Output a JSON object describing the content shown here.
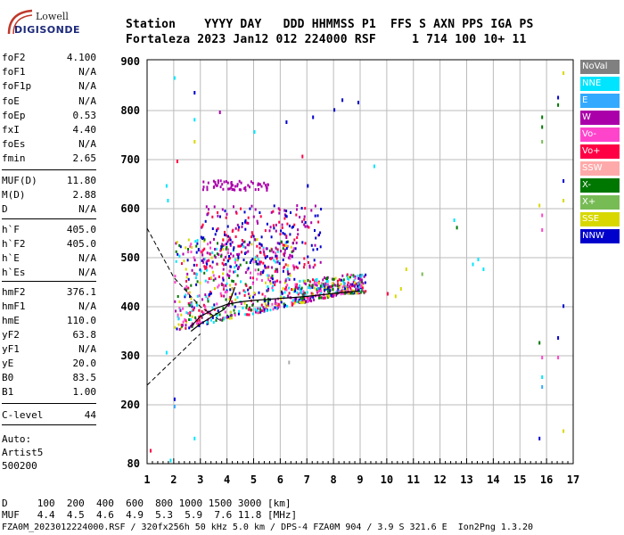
{
  "logo": {
    "line1": "Lowell",
    "line2": "DIGISONDE"
  },
  "header": {
    "row1": "Station    YYYY DAY   DDD HHMMSS P1  FFS S AXN PPS IGA PS",
    "row2": "Fortaleza 2023 Jan12 012 224000 RSF     1 714 100 10+ 11"
  },
  "params": [
    {
      "name": "foF2",
      "value": "4.100"
    },
    {
      "name": "foF1",
      "value": "N/A"
    },
    {
      "name": "foF1p",
      "value": "N/A"
    },
    {
      "name": "foE",
      "value": "N/A"
    },
    {
      "name": "foEp",
      "value": "0.53"
    },
    {
      "name": "fxI",
      "value": "4.40"
    },
    {
      "name": "foEs",
      "value": "N/A"
    },
    {
      "name": "fmin",
      "value": "2.65"
    },
    {
      "name": "MUF(D)",
      "value": "11.80"
    },
    {
      "name": "M(D)",
      "value": "2.88"
    },
    {
      "name": "D",
      "value": "N/A"
    },
    {
      "name": "h`F",
      "value": "405.0"
    },
    {
      "name": "h`F2",
      "value": "405.0"
    },
    {
      "name": "h`E",
      "value": "N/A"
    },
    {
      "name": "h`Es",
      "value": "N/A"
    },
    {
      "name": "hmF2",
      "value": "376.1"
    },
    {
      "name": "hmF1",
      "value": "N/A"
    },
    {
      "name": "hmE",
      "value": "110.0"
    },
    {
      "name": "yF2",
      "value": "63.8"
    },
    {
      "name": "yF1",
      "value": "N/A"
    },
    {
      "name": "yE",
      "value": "20.0"
    },
    {
      "name": "B0",
      "value": "83.5"
    },
    {
      "name": "B1",
      "value": "1.00"
    },
    {
      "name": "C-level",
      "value": "44"
    }
  ],
  "auto": {
    "line1": "Auto:",
    "line2": "Artist5",
    "line3": "500200"
  },
  "legend": [
    {
      "label": "NoVal",
      "color": "#808080"
    },
    {
      "label": "NNE",
      "color": "#00e5ff"
    },
    {
      "label": "E",
      "color": "#33aaff"
    },
    {
      "label": "W",
      "color": "#aa00aa"
    },
    {
      "label": "Vo-",
      "color": "#ff44cc"
    },
    {
      "label": "Vo+",
      "color": "#ff0044"
    },
    {
      "label": "SSW",
      "color": "#ffaaaa"
    },
    {
      "label": "X-",
      "color": "#007700"
    },
    {
      "label": "X+",
      "color": "#77bb55"
    },
    {
      "label": "SSE",
      "color": "#d8d800"
    },
    {
      "label": "NNW",
      "color": "#0000cc"
    }
  ],
  "bottom": {
    "d_row": "D     100  200  400  600  800 1000 1500 3000 [km]",
    "muf_row": "MUF   4.4  4.5  4.6  4.9  5.3  5.9  7.6 11.8 [MHz]"
  },
  "footer": "FZA0M_2023012224000.RSF / 320fx256h 50 kHz 5.0 km / DPS-4 FZA0M 904 / 3.9 S 321.6 E  Ion2Png 1.3.20",
  "chart_data": {
    "type": "scatter",
    "x_ticks": [
      "1",
      "2",
      "3",
      "4",
      "5",
      "6",
      "7",
      "8",
      "9",
      "10",
      "11",
      "12",
      "13",
      "14",
      "15",
      "16",
      "17"
    ],
    "y_ticks": [
      "80",
      "200",
      "300",
      "400",
      "500",
      "600",
      "700",
      "800",
      "900"
    ],
    "xlim": [
      1,
      17
    ],
    "ylim": [
      80,
      900
    ],
    "grid": true,
    "legend_position": "right",
    "traces": [
      {
        "name": "hmF2 profile",
        "x": [
          2.65,
          3.0,
          3.3,
          3.6,
          3.9,
          4.1,
          4.3
        ],
        "y": [
          350,
          365,
          375,
          385,
          395,
          410,
          440
        ]
      },
      {
        "name": "F2 trace",
        "x": [
          2.65,
          3.0,
          3.5,
          4.0,
          4.5,
          5.0,
          5.5,
          6.0,
          6.5,
          7.0,
          7.5,
          8.0,
          8.5,
          9.0
        ],
        "y": [
          360,
          380,
          395,
          405,
          410,
          413,
          415,
          417,
          419,
          421,
          424,
          427,
          430,
          432
        ]
      }
    ],
    "dashed_lines": [
      {
        "name": "profile-lower",
        "x": [
          1.0,
          3.0
        ],
        "y": [
          240,
          345
        ]
      },
      {
        "name": "profile-upper",
        "x": [
          1.0,
          2.0,
          3.0,
          3.8
        ],
        "y": [
          560,
          460,
          400,
          370
        ]
      }
    ],
    "scatter_clusters": [
      {
        "name": "F-region bulk",
        "x_range": [
          2.0,
          9.2
        ],
        "y_range": [
          340,
          540
        ],
        "colors": [
          "#aa00aa",
          "#d8d800",
          "#00e5ff",
          "#ff0044",
          "#0000cc",
          "#007700",
          "#ff44cc"
        ]
      },
      {
        "name": "spread-F high",
        "x_range": [
          3.0,
          7.5
        ],
        "y_range": [
          480,
          610
        ],
        "colors": [
          "#aa00aa",
          "#ff0044",
          "#0000cc"
        ]
      },
      {
        "name": "layer 650",
        "x_range": [
          3.0,
          5.6
        ],
        "y_range": [
          640,
          660
        ],
        "colors": [
          "#aa00aa"
        ]
      }
    ]
  }
}
